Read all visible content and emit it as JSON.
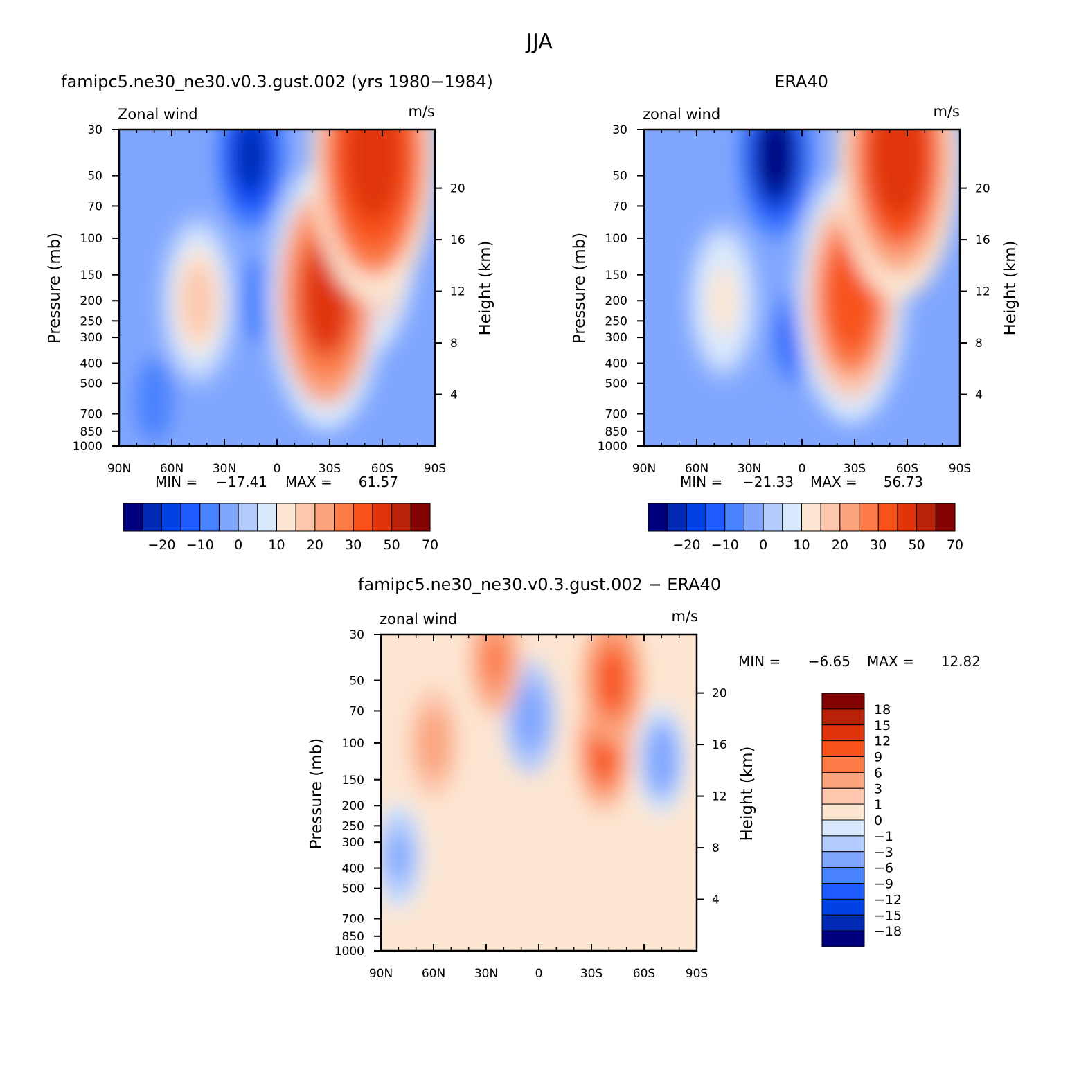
{
  "figure": {
    "title": "JJA"
  },
  "chart_data": [
    {
      "type": "heatmap",
      "title": "famipc5.ne30_ne30.v0.3.gust.002 (yrs 1980−1984)",
      "left_label": "Zonal wind",
      "units": "m/s",
      "xlabel": "",
      "ylabel": "Pressure (mb)",
      "y2label": "Height (km)",
      "xticks": [
        "90N",
        "60N",
        "30N",
        "0",
        "30S",
        "60S",
        "90S"
      ],
      "xlim": [
        90,
        -90
      ],
      "yticks": [
        30,
        50,
        70,
        100,
        150,
        200,
        250,
        300,
        400,
        500,
        700,
        850,
        1000
      ],
      "ylim": [
        1000,
        30
      ],
      "y2ticks": [
        4,
        8,
        12,
        16,
        20
      ],
      "min_label": "MIN =",
      "min_value": "−17.41",
      "max_label": "MAX =",
      "max_value": "61.57",
      "colorbar_labels": [
        "−20",
        "−10",
        "0",
        "10",
        "20",
        "30",
        "50",
        "70"
      ],
      "colorbar_colors": [
        "#00007f",
        "#0029b4",
        "#0041e6",
        "#1f5afc",
        "#4882fe",
        "#80a6fe",
        "#b3cbfd",
        "#d9e9fd",
        "#fde6d2",
        "#fcc7ad",
        "#fba47e",
        "#fb7a46",
        "#f7521a",
        "#e0340b",
        "#b82208",
        "#820202"
      ],
      "features": [
        {
          "lat": 45,
          "p": 200,
          "value": 22
        },
        {
          "lat": 47,
          "p": 230,
          "value": 13
        },
        {
          "lat": -28,
          "p": 190,
          "value": 50
        },
        {
          "lat": -55,
          "p": 40,
          "value": 58
        },
        {
          "lat": -50,
          "p": 100,
          "value": 42
        },
        {
          "lat": 15,
          "p": 40,
          "value": -16
        },
        {
          "lat": 10,
          "p": 200,
          "value": -3
        },
        {
          "lat": 70,
          "p": 600,
          "value": -3
        }
      ]
    },
    {
      "type": "heatmap",
      "title": "ERA40",
      "left_label": "zonal wind",
      "units": "m/s",
      "xlabel": "",
      "ylabel": "Pressure (mb)",
      "y2label": "Height (km)",
      "xticks": [
        "90N",
        "60N",
        "30N",
        "0",
        "30S",
        "60S",
        "90S"
      ],
      "xlim": [
        90,
        -90
      ],
      "yticks": [
        30,
        50,
        70,
        100,
        150,
        200,
        250,
        300,
        400,
        500,
        700,
        850,
        1000
      ],
      "ylim": [
        1000,
        30
      ],
      "y2ticks": [
        4,
        8,
        12,
        16,
        20
      ],
      "min_label": "MIN =",
      "min_value": "−21.33",
      "max_label": "MAX =",
      "max_value": "56.73",
      "colorbar_labels": [
        "−20",
        "−10",
        "0",
        "10",
        "20",
        "30",
        "50",
        "70"
      ],
      "colorbar_colors": [
        "#00007f",
        "#0029b4",
        "#0041e6",
        "#1f5afc",
        "#4882fe",
        "#80a6fe",
        "#b3cbfd",
        "#d9e9fd",
        "#fde6d2",
        "#fcc7ad",
        "#fba47e",
        "#fb7a46",
        "#f7521a",
        "#e0340b",
        "#b82208",
        "#820202"
      ],
      "features": [
        {
          "lat": 45,
          "p": 200,
          "value": 18
        },
        {
          "lat": -28,
          "p": 190,
          "value": 46
        },
        {
          "lat": -55,
          "p": 40,
          "value": 56
        },
        {
          "lat": 15,
          "p": 40,
          "value": -21
        },
        {
          "lat": 5,
          "p": 300,
          "value": -6
        }
      ]
    },
    {
      "type": "heatmap",
      "title": "famipc5.ne30_ne30.v0.3.gust.002 − ERA40",
      "left_label": "zonal wind",
      "units": "m/s",
      "xlabel": "",
      "ylabel": "Pressure (mb)",
      "y2label": "Height (km)",
      "xticks": [
        "90N",
        "60N",
        "30N",
        "0",
        "30S",
        "60S",
        "90S"
      ],
      "xlim": [
        90,
        -90
      ],
      "yticks": [
        30,
        50,
        70,
        100,
        150,
        200,
        250,
        300,
        400,
        500,
        700,
        850,
        1000
      ],
      "ylim": [
        1000,
        30
      ],
      "y2ticks": [
        4,
        8,
        12,
        16,
        20
      ],
      "min_label": "MIN =",
      "min_value": "−6.65",
      "max_label": "MAX =",
      "max_value": "12.82",
      "colorbar_labels": [
        "18",
        "15",
        "12",
        "9",
        "6",
        "3",
        "1",
        "0",
        "−1",
        "−3",
        "−6",
        "−9",
        "−12",
        "−15",
        "−18"
      ],
      "colorbar_colors": [
        "#820202",
        "#b82208",
        "#e0340b",
        "#f7521a",
        "#fb7a46",
        "#fba47e",
        "#fcc7ad",
        "#fde6d2",
        "#d9e9fd",
        "#b3cbfd",
        "#80a6fe",
        "#4882fe",
        "#1f5afc",
        "#0041e6",
        "#0029b4",
        "#00007f"
      ],
      "features": [
        {
          "lat": -42,
          "p": 50,
          "value": 11
        },
        {
          "lat": -37,
          "p": 110,
          "value": 9
        },
        {
          "lat": 5,
          "p": 75,
          "value": -6
        },
        {
          "lat": 60,
          "p": 100,
          "value": 5
        },
        {
          "lat": 80,
          "p": 350,
          "value": -4
        },
        {
          "lat": 25,
          "p": 40,
          "value": 6
        },
        {
          "lat": -70,
          "p": 120,
          "value": -5
        }
      ]
    }
  ]
}
